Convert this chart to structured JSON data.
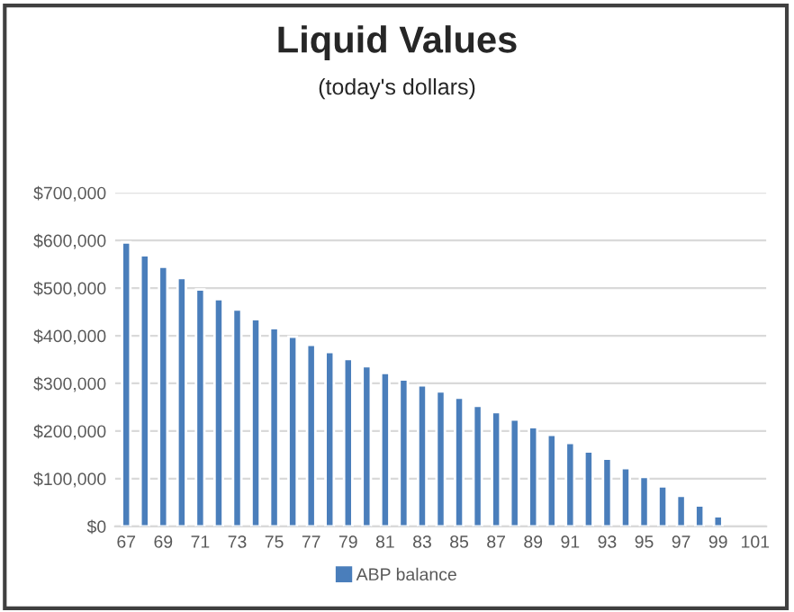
{
  "chart_data": {
    "type": "bar",
    "title": "Liquid Values",
    "subtitle": "(today's dollars)",
    "categories": [
      "67",
      null,
      "69",
      null,
      "71",
      null,
      "73",
      null,
      "75",
      null,
      "77",
      null,
      "79",
      null,
      "81",
      null,
      "83",
      null,
      "85",
      null,
      "87",
      null,
      "89",
      null,
      "91",
      null,
      "93",
      null,
      "95",
      null,
      "97",
      null,
      "99",
      null,
      "101"
    ],
    "series": [
      {
        "name": "ABP balance",
        "color": "#4a7ebb",
        "values": [
          596000,
          569000,
          545000,
          521000,
          497000,
          477000,
          455000,
          435000,
          416000,
          398000,
          381000,
          366000,
          351000,
          336000,
          322000,
          308000,
          296000,
          283000,
          270000,
          253000,
          240000,
          224000,
          208000,
          192000,
          175000,
          157000,
          142000,
          122000,
          104000,
          84000,
          64000,
          44000,
          21000,
          null,
          null
        ]
      }
    ],
    "ylim": [
      0,
      700000
    ],
    "yticks": [
      {
        "value": 0,
        "label": "$0"
      },
      {
        "value": 100000,
        "label": "$100,000"
      },
      {
        "value": 200000,
        "label": "$200,000"
      },
      {
        "value": 300000,
        "label": "$300,000"
      },
      {
        "value": 400000,
        "label": "$400,000"
      },
      {
        "value": 500000,
        "label": "$500,000"
      },
      {
        "value": 600000,
        "label": "$600,000"
      },
      {
        "value": 700000,
        "label": "$700,000"
      }
    ],
    "grid": "y",
    "legend": "bottom"
  }
}
